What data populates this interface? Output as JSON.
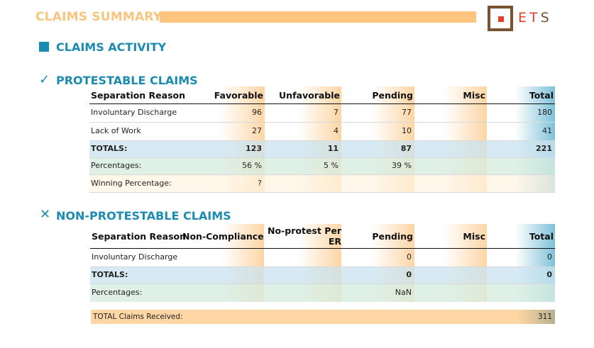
{
  "header": {
    "title": "CLAIMS SUMMARY",
    "logo_text": "ETS",
    "logo_icon": "square-logo-icon"
  },
  "activity": {
    "heading": "CLAIMS ACTIVITY"
  },
  "protestable": {
    "heading": "PROTESTABLE CLAIMS",
    "icon": "check-icon",
    "columns": [
      "Separation Reason",
      "Favorable",
      "Unfavorable",
      "Pending",
      "Misc",
      "Total"
    ],
    "rows": [
      {
        "reason": "Involuntary Discharge",
        "favorable": "96",
        "unfavorable": "7",
        "pending": "77",
        "misc": "",
        "total": "180"
      },
      {
        "reason": "Lack of Work",
        "favorable": "27",
        "unfavorable": "4",
        "pending": "10",
        "misc": "",
        "total": "41"
      }
    ],
    "totals": {
      "label": "TOTALS:",
      "favorable": "123",
      "unfavorable": "11",
      "pending": "87",
      "misc": "",
      "total": "221"
    },
    "percentages": {
      "label": "Percentages:",
      "favorable": "56 %",
      "unfavorable": "5 %",
      "pending": "39 %"
    },
    "winning": {
      "label": "Winning Percentage:",
      "value": "?"
    }
  },
  "nonprotestable": {
    "heading": "NON-PROTESTABLE CLAIMS",
    "icon": "x-icon",
    "columns": [
      "Separation Reason",
      "Non-Compliance",
      "No-protest Per ER",
      "Pending",
      "Misc",
      "Total"
    ],
    "rows": [
      {
        "reason": "Involuntary Discharge",
        "noncompliance": "",
        "noprotest": "",
        "pending": "0",
        "misc": "",
        "total": "0"
      }
    ],
    "totals": {
      "label": "TOTALS:",
      "pending": "0",
      "total": "0"
    },
    "percentages": {
      "label": "Percentages:",
      "pending": "NaN"
    }
  },
  "grand_total": {
    "label": "TOTAL Claims Received:",
    "value": "311"
  }
}
